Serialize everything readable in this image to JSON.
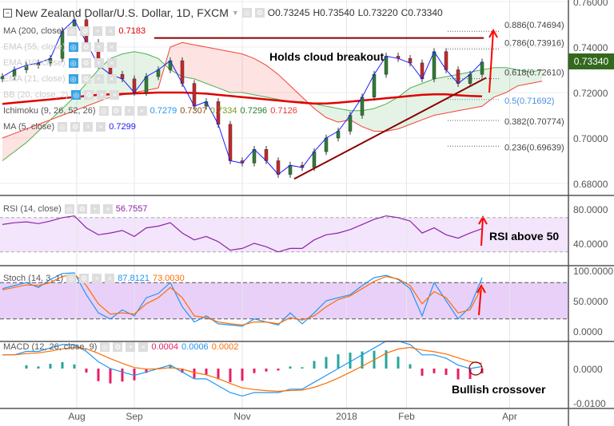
{
  "header": {
    "symbol": "New Zealand Dollar/U.S. Dollar, 1D, FXCM",
    "open": "O0.73245",
    "high": "H0.73540",
    "low": "L0.73220",
    "close": "C0.73340"
  },
  "legends": {
    "ma200": {
      "label": "MA (200, close)",
      "value": "0.7183"
    },
    "ema55": {
      "label": "EMA (55, close)"
    },
    "ema10": {
      "label": "EMA (10, close)"
    },
    "ema21": {
      "label": "EMA (21, close)"
    },
    "bb": {
      "label": "BB (20, close, 2)"
    },
    "ichimoku": {
      "label": "Ichimoku (9, 26, 52, 26)",
      "values": [
        "0.7279",
        "0.7307",
        "0.7334",
        "0.7296",
        "0.7126"
      ]
    },
    "ma5": {
      "label": "MA (5, close)",
      "value": "0.7299"
    },
    "rsi": {
      "label": "RSI (14, close)",
      "value": "56.7557"
    },
    "stoch": {
      "label": "Stoch (14, 3, 1)",
      "k": "87.8121",
      "d": "73.0030"
    },
    "macd": {
      "label": "MACD (12, 26, close, 9)",
      "hist": "0.0004",
      "macd": "0.0006",
      "signal": "0.0002"
    }
  },
  "price_label": "0.73340",
  "annotations": {
    "cloud": "Holds cloud breakout",
    "rsi": "RSI above 50",
    "macd": "Bullish crossover"
  },
  "colors": {
    "up": "#2e7d32",
    "down": "#c62828",
    "ma200": "#e00000",
    "ma5": "#1a1aff",
    "rsi": "#8e24aa",
    "k": "#2196f3",
    "d": "#ff6d00",
    "price_bg": "#33691e"
  },
  "chart_data": {
    "type": "candlestick",
    "title": "New Zealand Dollar/U.S. Dollar, 1D, FXCM",
    "x_ticks": [
      {
        "label": "Aug",
        "index": 6.2
      },
      {
        "label": "Sep",
        "index": 11
      },
      {
        "label": "Nov",
        "index": 20
      },
      {
        "label": "2018",
        "index": 28.7
      },
      {
        "label": "Feb",
        "index": 33.7
      },
      {
        "label": "Apr",
        "index": 42.3
      }
    ],
    "y_ticks": [
      "0.76000",
      "0.74000",
      "0.72000",
      "0.70000",
      "0.68000"
    ],
    "y_tick_values": [
      0.76,
      0.74,
      0.72,
      0.7,
      0.68
    ],
    "ylim": [
      0.6745,
      0.7608
    ],
    "closes": [
      0.727,
      0.73,
      0.732,
      0.733,
      0.735,
      0.747,
      0.752,
      0.742,
      0.732,
      0.728,
      0.726,
      0.72,
      0.727,
      0.73,
      0.734,
      0.724,
      0.714,
      0.716,
      0.706,
      0.69,
      0.689,
      0.695,
      0.69,
      0.684,
      0.688,
      0.687,
      0.694,
      0.7,
      0.703,
      0.71,
      0.718,
      0.728,
      0.736,
      0.735,
      0.733,
      0.726,
      0.738,
      0.73,
      0.724,
      0.728,
      0.7334
    ],
    "ma200": [
      0.715,
      0.7155,
      0.716,
      0.7165,
      0.717,
      0.7175,
      0.718,
      0.7185,
      0.719,
      0.7192,
      0.7194,
      0.7196,
      0.7198,
      0.72,
      0.72,
      0.72,
      0.7198,
      0.7195,
      0.719,
      0.7185,
      0.718,
      0.7175,
      0.717,
      0.7165,
      0.716,
      0.7155,
      0.7152,
      0.7152,
      0.7155,
      0.716,
      0.7165,
      0.717,
      0.7175,
      0.718,
      0.7185,
      0.719,
      0.7192,
      0.7192,
      0.7188,
      0.7185,
      0.7183
    ],
    "span_a": [
      0.69,
      0.694,
      0.698,
      0.703,
      0.708,
      0.713,
      0.718,
      0.724,
      0.73,
      0.735,
      0.737,
      0.738,
      0.737,
      0.735,
      0.73,
      0.727,
      0.726,
      0.724,
      0.722,
      0.72,
      0.72,
      0.719,
      0.718,
      0.717,
      0.716,
      0.716,
      0.715,
      0.714,
      0.713,
      0.712,
      0.712,
      0.713,
      0.715,
      0.718,
      0.722,
      0.724,
      0.726,
      0.727,
      0.728,
      0.729,
      0.73,
      0.731,
      0.731,
      0.73,
      0.729,
      0.73
    ],
    "span_b": [
      0.7,
      0.702,
      0.704,
      0.706,
      0.708,
      0.71,
      0.712,
      0.714,
      0.716,
      0.718,
      0.719,
      0.72,
      0.721,
      0.722,
      0.74,
      0.742,
      0.741,
      0.74,
      0.739,
      0.738,
      0.737,
      0.735,
      0.732,
      0.728,
      0.723,
      0.718,
      0.713,
      0.709,
      0.707,
      0.708,
      0.705,
      0.703,
      0.703,
      0.704,
      0.706,
      0.708,
      0.71,
      0.711,
      0.712,
      0.713,
      0.714,
      0.718,
      0.72,
      0.723,
      0.724,
      0.725
    ],
    "resistance": 0.744,
    "fib": [
      {
        "label": "0.886(0.74694)",
        "value": 0.74694
      },
      {
        "label": "0.786(0.73916)",
        "value": 0.73916
      },
      {
        "label": "0.618(0.72610)",
        "value": 0.7261
      },
      {
        "label": "0.5(0.71692)",
        "value": 0.71692
      },
      {
        "label": "0.382(0.70774)",
        "value": 0.70774
      },
      {
        "label": "0.236(0.69639)",
        "value": 0.69639
      }
    ],
    "rsi": {
      "values": [
        62,
        64,
        65,
        63,
        66,
        70,
        72,
        58,
        50,
        52,
        55,
        48,
        58,
        60,
        64,
        52,
        44,
        48,
        42,
        32,
        34,
        40,
        36,
        30,
        34,
        34,
        44,
        50,
        52,
        56,
        62,
        68,
        72,
        70,
        66,
        52,
        58,
        50,
        46,
        52,
        57
      ],
      "y_ticks": [
        "80.0000",
        "40.0000"
      ],
      "y_tick_values": [
        80,
        40
      ],
      "bands": [
        70,
        30
      ]
    },
    "stoch": {
      "k": [
        70,
        75,
        80,
        72,
        85,
        95,
        96,
        60,
        30,
        20,
        35,
        25,
        55,
        62,
        80,
        40,
        15,
        25,
        12,
        10,
        8,
        20,
        15,
        10,
        30,
        12,
        30,
        50,
        55,
        60,
        75,
        88,
        92,
        85,
        70,
        25,
        80,
        50,
        20,
        40,
        88
      ],
      "d": [
        68,
        72,
        76,
        75,
        80,
        90,
        94,
        75,
        45,
        28,
        30,
        28,
        45,
        55,
        72,
        55,
        25,
        22,
        15,
        12,
        10,
        15,
        15,
        12,
        22,
        18,
        25,
        40,
        52,
        58,
        70,
        82,
        90,
        86,
        75,
        45,
        65,
        55,
        30,
        35,
        73
      ],
      "y_ticks": [
        "100.0000",
        "50.0000",
        "0.0000"
      ],
      "y_tick_values": [
        100,
        50,
        0
      ],
      "bands": [
        80,
        20
      ]
    },
    "macd": {
      "macd": [
        0.004,
        0.004,
        0.005,
        0.005,
        0.006,
        0.007,
        0.007,
        0.005,
        0.002,
        0.0,
        -0.001,
        -0.002,
        -0.001,
        0.0,
        0.001,
        -0.001,
        -0.003,
        -0.003,
        -0.005,
        -0.007,
        -0.008,
        -0.007,
        -0.007,
        -0.007,
        -0.006,
        -0.006,
        -0.004,
        -0.002,
        0.0,
        0.002,
        0.004,
        0.006,
        0.008,
        0.008,
        0.007,
        0.004,
        0.004,
        0.003,
        0.001,
        0.0,
        0.0006
      ],
      "y_ticks": [
        "0.0000",
        "-0.0100"
      ],
      "y_tick_values": [
        0,
        -0.01
      ]
    }
  }
}
